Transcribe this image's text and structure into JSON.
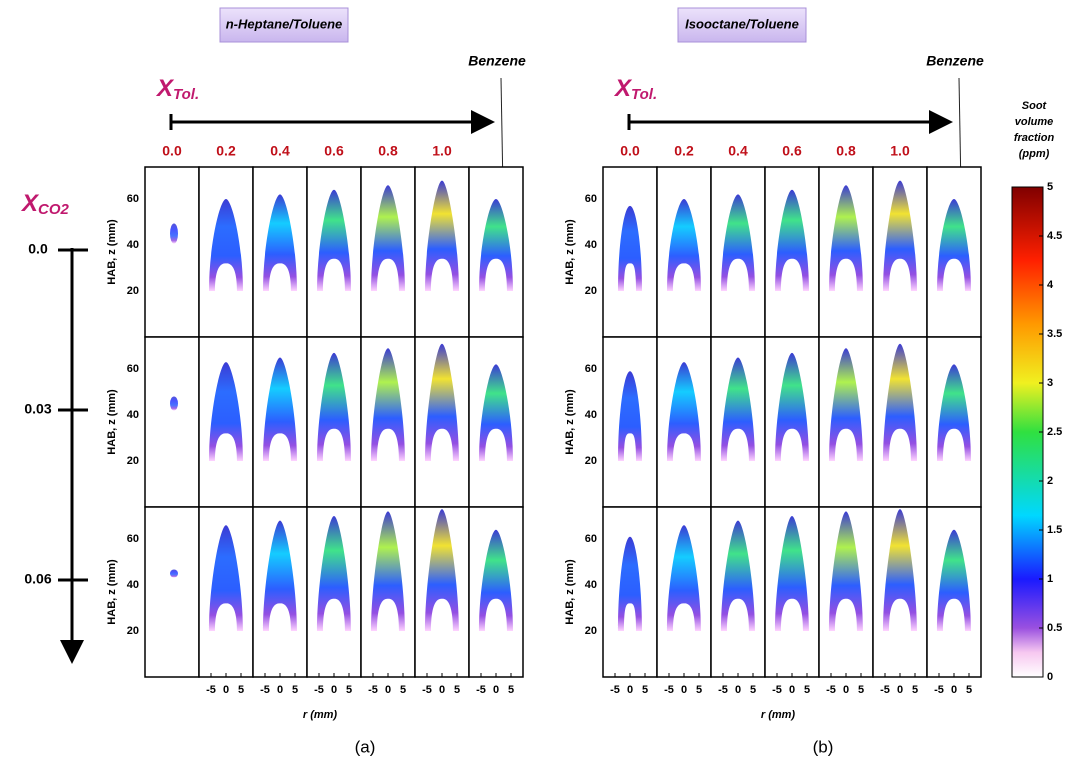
{
  "panels": [
    {
      "title": "n-Heptane/Toluene",
      "caption": "(a)",
      "benzene": "Benzene"
    },
    {
      "title": "Isooctane/Toluene",
      "caption": "(b)",
      "benzene": "Benzene"
    }
  ],
  "x_tol_label": "X",
  "x_tol_sub": "Tol.",
  "x_tol_values": [
    "0.0",
    "0.2",
    "0.4",
    "0.6",
    "0.8",
    "1.0"
  ],
  "x_co2_label": "X",
  "x_co2_sub": "CO2",
  "x_co2_values": [
    "0.0",
    "0.03",
    "0.06"
  ],
  "y_axis_label": "HAB, z (mm)",
  "yticks": [
    20,
    40,
    60
  ],
  "x_axis_label": "r (mm)",
  "xticks": [
    -5,
    0,
    5
  ],
  "colorbar": {
    "title": [
      "Soot",
      "volume",
      "fraction",
      "(ppm)"
    ],
    "ticks": [
      0,
      0.5,
      1,
      1.5,
      2,
      2.5,
      3,
      3.5,
      4,
      4.5,
      5
    ]
  }
}
